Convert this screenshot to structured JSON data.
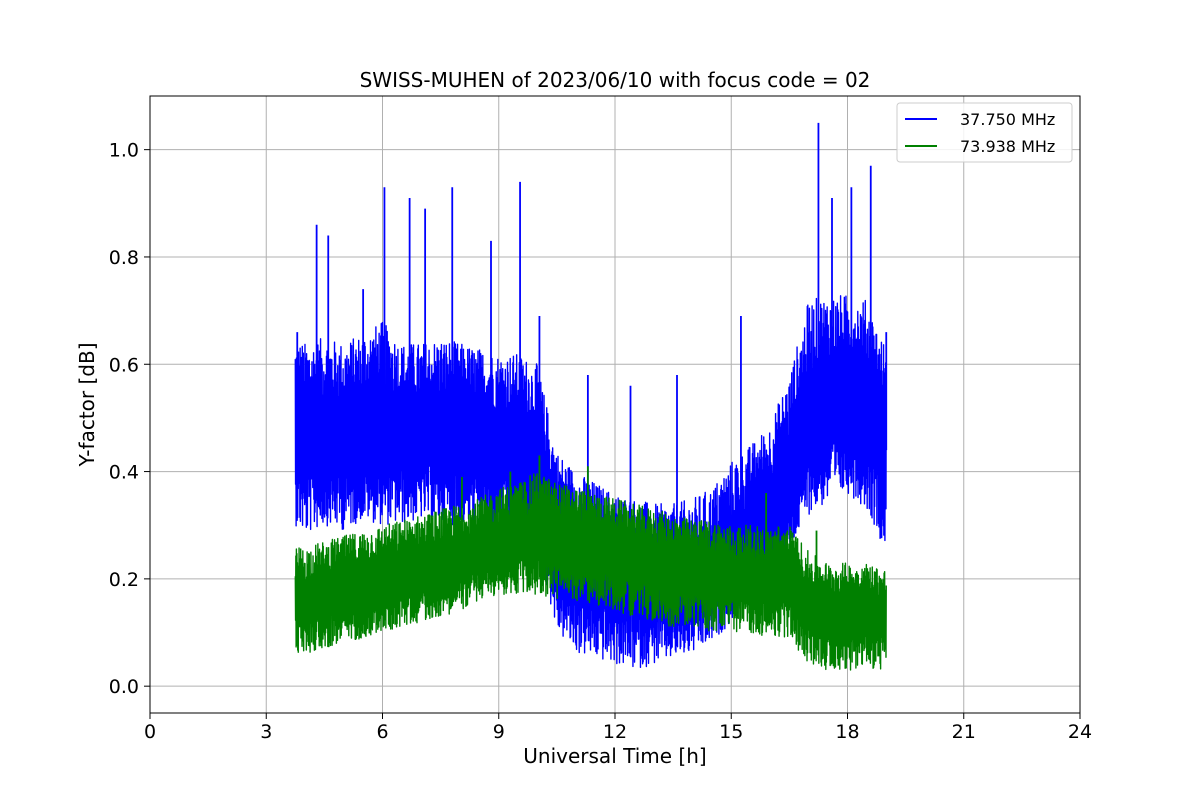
{
  "chart_data": {
    "type": "line",
    "title": "SWISS-MUHEN of 2023/06/10 with focus code = 02",
    "xlabel": "Universal Time [h]",
    "ylabel": "Y-factor [dB]",
    "xlim": [
      0,
      24
    ],
    "ylim": [
      -0.05,
      1.1
    ],
    "xticks": [
      0,
      3,
      6,
      9,
      12,
      15,
      18,
      21,
      24
    ],
    "yticks": [
      0.0,
      0.2,
      0.4,
      0.6,
      0.8,
      1.0
    ],
    "xtick_labels": [
      "0",
      "3",
      "6",
      "9",
      "12",
      "15",
      "18",
      "21",
      "24"
    ],
    "ytick_labels": [
      "0.0",
      "0.2",
      "0.4",
      "0.6",
      "0.8",
      "1.0"
    ],
    "grid": true,
    "legend_position": "top-right",
    "series": [
      {
        "name": "37.750 MHz",
        "color": "#0000ff",
        "x": [
          3.75,
          4.0,
          4.5,
          5.0,
          5.5,
          6.0,
          6.5,
          7.0,
          7.5,
          8.0,
          8.5,
          9.0,
          9.5,
          10.0,
          10.5,
          11.0,
          11.5,
          12.0,
          12.5,
          13.0,
          13.5,
          14.0,
          14.5,
          15.0,
          15.5,
          16.0,
          16.5,
          17.0,
          17.5,
          18.0,
          18.5,
          19.0
        ],
        "values": [
          0.47,
          0.46,
          0.47,
          0.46,
          0.47,
          0.48,
          0.47,
          0.47,
          0.47,
          0.46,
          0.46,
          0.45,
          0.45,
          0.42,
          0.27,
          0.24,
          0.22,
          0.2,
          0.2,
          0.19,
          0.19,
          0.19,
          0.21,
          0.23,
          0.28,
          0.32,
          0.38,
          0.5,
          0.53,
          0.53,
          0.52,
          0.44
        ],
        "low": [
          0.3,
          0.28,
          0.3,
          0.29,
          0.31,
          0.3,
          0.3,
          0.31,
          0.3,
          0.3,
          0.29,
          0.28,
          0.28,
          0.26,
          0.1,
          0.06,
          0.05,
          0.04,
          0.03,
          0.04,
          0.05,
          0.06,
          0.08,
          0.12,
          0.17,
          0.2,
          0.25,
          0.32,
          0.34,
          0.36,
          0.33,
          0.25
        ],
        "high": [
          0.65,
          0.64,
          0.65,
          0.64,
          0.66,
          0.68,
          0.64,
          0.64,
          0.65,
          0.64,
          0.63,
          0.62,
          0.62,
          0.6,
          0.44,
          0.4,
          0.38,
          0.36,
          0.35,
          0.34,
          0.34,
          0.35,
          0.37,
          0.42,
          0.45,
          0.49,
          0.58,
          0.72,
          0.73,
          0.73,
          0.72,
          0.63
        ],
        "spikes": [
          [
            3.8,
            0.66
          ],
          [
            4.3,
            0.86
          ],
          [
            4.6,
            0.84
          ],
          [
            5.5,
            0.74
          ],
          [
            6.05,
            0.93
          ],
          [
            6.7,
            0.91
          ],
          [
            7.1,
            0.89
          ],
          [
            7.8,
            0.93
          ],
          [
            8.8,
            0.83
          ],
          [
            9.55,
            0.94
          ],
          [
            10.05,
            0.69
          ],
          [
            11.3,
            0.58
          ],
          [
            12.4,
            0.56
          ],
          [
            13.6,
            0.58
          ],
          [
            15.25,
            0.69
          ],
          [
            17.25,
            1.05
          ],
          [
            17.6,
            0.91
          ],
          [
            18.1,
            0.93
          ],
          [
            18.6,
            0.97
          ],
          [
            19.0,
            0.66
          ]
        ]
      },
      {
        "name": "73.938 MHz",
        "color": "#008000",
        "x": [
          3.75,
          4.0,
          4.5,
          5.0,
          5.5,
          6.0,
          6.5,
          7.0,
          7.5,
          8.0,
          8.5,
          9.0,
          9.5,
          10.0,
          10.5,
          11.0,
          11.5,
          12.0,
          12.5,
          13.0,
          13.5,
          14.0,
          14.5,
          15.0,
          15.5,
          16.0,
          16.5,
          17.0,
          17.5,
          18.0,
          18.5,
          19.0
        ],
        "values": [
          0.16,
          0.16,
          0.17,
          0.18,
          0.19,
          0.2,
          0.21,
          0.22,
          0.23,
          0.24,
          0.25,
          0.26,
          0.27,
          0.28,
          0.27,
          0.27,
          0.26,
          0.25,
          0.24,
          0.23,
          0.22,
          0.22,
          0.21,
          0.2,
          0.2,
          0.2,
          0.2,
          0.15,
          0.14,
          0.14,
          0.14,
          0.13
        ],
        "low": [
          0.06,
          0.06,
          0.07,
          0.08,
          0.09,
          0.1,
          0.11,
          0.12,
          0.13,
          0.14,
          0.16,
          0.17,
          0.17,
          0.17,
          0.16,
          0.16,
          0.15,
          0.14,
          0.13,
          0.12,
          0.11,
          0.11,
          0.1,
          0.1,
          0.1,
          0.09,
          0.09,
          0.04,
          0.03,
          0.03,
          0.03,
          0.03
        ],
        "high": [
          0.26,
          0.26,
          0.27,
          0.28,
          0.29,
          0.3,
          0.31,
          0.32,
          0.33,
          0.34,
          0.35,
          0.37,
          0.38,
          0.4,
          0.38,
          0.37,
          0.36,
          0.35,
          0.34,
          0.33,
          0.32,
          0.31,
          0.31,
          0.3,
          0.3,
          0.3,
          0.3,
          0.25,
          0.23,
          0.23,
          0.23,
          0.22
        ],
        "spikes": [
          [
            8.05,
            0.39
          ],
          [
            9.3,
            0.4
          ],
          [
            10.05,
            0.43
          ],
          [
            11.3,
            0.41
          ],
          [
            15.9,
            0.36
          ],
          [
            17.2,
            0.29
          ]
        ]
      }
    ]
  }
}
